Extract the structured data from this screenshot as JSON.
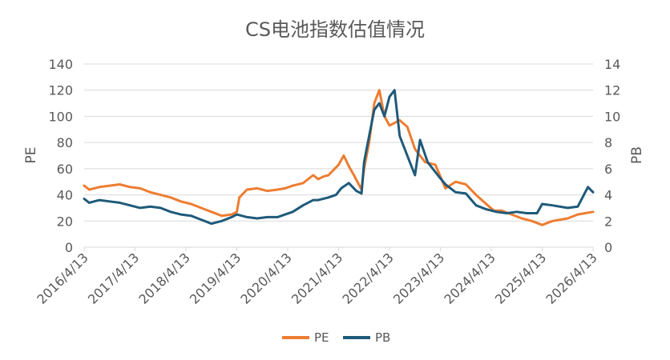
{
  "chart_data": {
    "type": "line",
    "title": "CS电池指数估值情况",
    "xlabel": "",
    "ylabel_left": "PE",
    "ylabel_right": "PB",
    "ylim_left": [
      0,
      140
    ],
    "ylim_right": [
      0,
      14
    ],
    "yticks_left": [
      "0",
      "20",
      "40",
      "60",
      "80",
      "100",
      "120",
      "140"
    ],
    "yticks_right": [
      "0",
      "2",
      "4",
      "6",
      "8",
      "10",
      "12",
      "14"
    ],
    "xticks": [
      "2016/4/13",
      "2017/4/13",
      "2018/4/13",
      "2019/4/13",
      "2020/4/13",
      "2021/4/13",
      "2022/4/13",
      "2023/4/13",
      "2024/4/13",
      "2025/4/13",
      "2026/4/13"
    ],
    "grid": true,
    "legend_position": "bottom-center",
    "colors": {
      "PE": "#ED7D31",
      "PB": "#1F5A7A",
      "grid": "#D9D9D9",
      "text": "#595959"
    },
    "series": [
      {
        "name": "PE",
        "axis": "left",
        "x": [
          0,
          0.1,
          0.3,
          0.5,
          0.7,
          0.9,
          1.1,
          1.3,
          1.5,
          1.7,
          1.9,
          2.1,
          2.3,
          2.5,
          2.7,
          2.9,
          3.0,
          3.05,
          3.2,
          3.4,
          3.6,
          3.8,
          3.95,
          4.1,
          4.3,
          4.5,
          4.6,
          4.7,
          4.8,
          5.0,
          5.1,
          5.2,
          5.3,
          5.45,
          5.5,
          5.6,
          5.7,
          5.8,
          5.9,
          6.0,
          6.2,
          6.35,
          6.5,
          6.7,
          6.9,
          7.1,
          7.3,
          7.5,
          7.7,
          7.9,
          8.05,
          8.2,
          8.4,
          8.6,
          8.8,
          9.0,
          9.2,
          9.5,
          9.7,
          10.0
        ],
        "values": [
          47,
          44,
          46,
          47,
          48,
          46,
          45,
          42,
          40,
          38,
          35,
          33,
          30,
          27,
          24,
          25,
          27,
          38,
          44,
          45,
          43,
          44,
          45,
          47,
          49,
          55,
          52,
          54,
          55,
          63,
          70,
          62,
          55,
          44,
          60,
          80,
          110,
          120,
          100,
          93,
          97,
          92,
          75,
          65,
          63,
          45,
          50,
          48,
          40,
          33,
          28,
          28,
          25,
          22,
          20,
          17,
          20,
          22,
          25,
          27
        ]
      },
      {
        "name": "PB",
        "axis": "right",
        "x": [
          0,
          0.1,
          0.3,
          0.5,
          0.7,
          0.9,
          1.1,
          1.3,
          1.5,
          1.7,
          1.9,
          2.1,
          2.3,
          2.5,
          2.7,
          2.9,
          3.0,
          3.2,
          3.4,
          3.6,
          3.8,
          3.95,
          4.1,
          4.3,
          4.5,
          4.6,
          4.8,
          4.95,
          5.05,
          5.2,
          5.35,
          5.45,
          5.5,
          5.55,
          5.7,
          5.8,
          5.9,
          6.0,
          6.1,
          6.2,
          6.35,
          6.5,
          6.6,
          6.75,
          6.95,
          7.1,
          7.3,
          7.5,
          7.7,
          7.9,
          8.1,
          8.3,
          8.5,
          8.7,
          8.9,
          9.0,
          9.2,
          9.5,
          9.7,
          9.9,
          10.0
        ],
        "values": [
          3.7,
          3.4,
          3.6,
          3.5,
          3.4,
          3.2,
          3.0,
          3.1,
          3.0,
          2.7,
          2.5,
          2.4,
          2.1,
          1.8,
          2.0,
          2.3,
          2.5,
          2.3,
          2.2,
          2.3,
          2.3,
          2.5,
          2.7,
          3.2,
          3.6,
          3.6,
          3.8,
          4.0,
          4.5,
          4.9,
          4.3,
          4.1,
          6.5,
          7.5,
          10.5,
          11.0,
          10.0,
          11.5,
          12.0,
          8.5,
          7.0,
          5.5,
          8.2,
          6.5,
          5.5,
          4.8,
          4.2,
          4.1,
          3.2,
          2.9,
          2.7,
          2.6,
          2.7,
          2.6,
          2.6,
          3.3,
          3.2,
          3.0,
          3.1,
          4.6,
          4.2
        ]
      }
    ]
  }
}
